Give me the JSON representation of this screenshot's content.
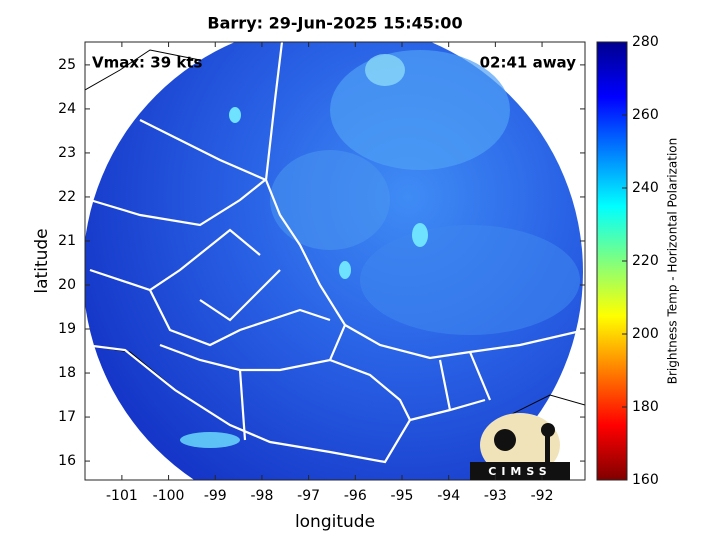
{
  "title": "Barry: 29-Jun-2025 15:45:00",
  "annotations": {
    "left": "Vmax: 39 kts",
    "right": "02:41 away"
  },
  "x_axis": {
    "label": "longitude",
    "lim": [
      -101.79,
      -91.08
    ],
    "ticks": [
      -101,
      -100,
      -99,
      -98,
      -97,
      -96,
      -95,
      -94,
      -93,
      -92
    ]
  },
  "y_axis": {
    "label": "latitude",
    "lim": [
      15.57,
      25.52
    ],
    "ticks": [
      16,
      17,
      18,
      19,
      20,
      21,
      22,
      23,
      24,
      25
    ]
  },
  "colorbar": {
    "label": "Brightness Temp - Horizontal Polarization",
    "lim": [
      160,
      280
    ],
    "ticks": [
      160,
      180,
      200,
      220,
      240,
      260,
      280
    ],
    "colormap": "jet_r"
  },
  "logo": "CIMSS"
}
